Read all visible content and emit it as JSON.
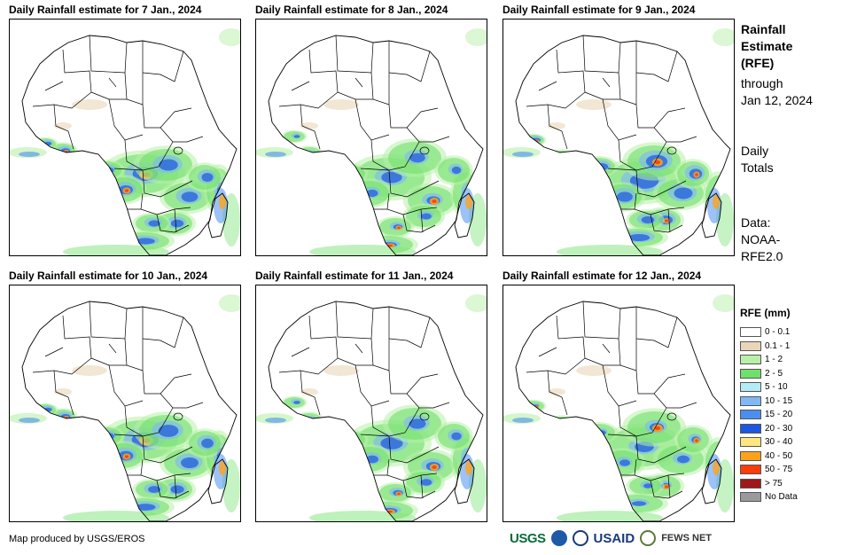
{
  "panels": [
    {
      "title": "Daily Rainfall estimate for 7 Jan., 2024",
      "intensity": 0.8
    },
    {
      "title": "Daily Rainfall estimate for 8 Jan., 2024",
      "intensity": 0.65
    },
    {
      "title": "Daily Rainfall estimate for 9 Jan., 2024",
      "intensity": 0.9
    },
    {
      "title": "Daily Rainfall estimate for 10 Jan., 2024",
      "intensity": 0.85
    },
    {
      "title": "Daily Rainfall estimate for 11 Jan., 2024",
      "intensity": 0.7
    },
    {
      "title": "Daily Rainfall estimate for 12 Jan., 2024",
      "intensity": 0.6
    }
  ],
  "sidebar": {
    "title_lines": [
      "Rainfall",
      "Estimate",
      "(RFE)"
    ],
    "through_lines": [
      "through",
      "Jan 12, 2024"
    ],
    "totals_lines": [
      "Daily",
      "Totals"
    ],
    "source_lines": [
      "Data:",
      "NOAA-",
      "RFE2.0"
    ]
  },
  "legend": {
    "title": "RFE (mm)",
    "items": [
      {
        "label": "0 - 0.1",
        "color": "#ffffff"
      },
      {
        "label": "0.1 - 1",
        "color": "#e9d6b8"
      },
      {
        "label": "1 - 2",
        "color": "#b8f0a8"
      },
      {
        "label": "2 - 5",
        "color": "#6fe06a"
      },
      {
        "label": "5 - 10",
        "color": "#b4ecf6"
      },
      {
        "label": "10 - 15",
        "color": "#7fb8f4"
      },
      {
        "label": "15 - 20",
        "color": "#4a8ff0"
      },
      {
        "label": "20 - 30",
        "color": "#1d56e0"
      },
      {
        "label": "30 - 40",
        "color": "#ffe680"
      },
      {
        "label": "40 - 50",
        "color": "#ffa21a"
      },
      {
        "label": "50 - 75",
        "color": "#ff3d0a"
      },
      {
        "label": "> 75",
        "color": "#a01818"
      },
      {
        "label": "No Data",
        "color": "#9a9a9a"
      }
    ]
  },
  "credit": "Map produced by USGS/EROS",
  "logos": {
    "usgs": "USGS",
    "usaid": "USAID",
    "fews": "FEWS NET",
    "usgs_color": "#0a6b3b",
    "noaa_color": "#1f5aa8",
    "usaid_color": "#1a3a7a"
  }
}
